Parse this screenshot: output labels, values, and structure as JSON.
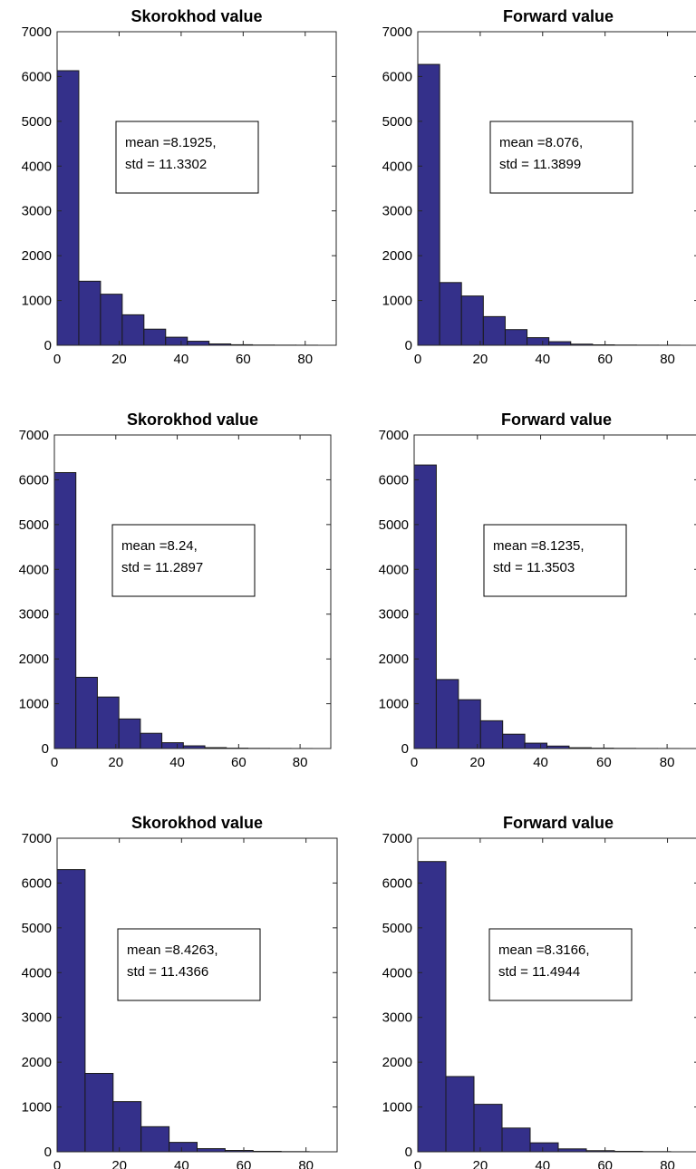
{
  "figure": {
    "bar_color": "#34308a",
    "edge_color": "#1a1a1a"
  },
  "chart_data": [
    {
      "type": "bar",
      "title": "Skorokhod value",
      "bin_width": 7,
      "x": [
        3.5,
        10.5,
        17.5,
        24.5,
        31.5,
        38.5,
        45.5,
        52.5,
        59.5,
        66.5,
        73.5,
        80.5
      ],
      "values": [
        6130,
        1430,
        1140,
        680,
        360,
        180,
        90,
        30,
        12,
        5,
        3,
        2
      ],
      "xlim": [
        0,
        90
      ],
      "ylim": [
        0,
        7000
      ],
      "xticks": [
        "0",
        "20",
        "40",
        "60",
        "80"
      ],
      "yticks": [
        "0",
        "1000",
        "2000",
        "3000",
        "4000",
        "5000",
        "6000",
        "7000"
      ],
      "annotation": [
        "mean =8.1925,",
        "std = 11.3302"
      ]
    },
    {
      "type": "bar",
      "title": "Forward value",
      "bin_width": 7,
      "x": [
        3.5,
        10.5,
        17.5,
        24.5,
        31.5,
        38.5,
        45.5,
        52.5,
        59.5,
        66.5,
        73.5,
        80.5
      ],
      "values": [
        6270,
        1400,
        1100,
        640,
        350,
        170,
        80,
        25,
        10,
        5,
        3,
        2
      ],
      "xlim": [
        0,
        90
      ],
      "ylim": [
        0,
        7000
      ],
      "xticks": [
        "0",
        "20",
        "40",
        "60",
        "80"
      ],
      "yticks": [
        "0",
        "1000",
        "2000",
        "3000",
        "4000",
        "5000",
        "6000",
        "7000"
      ],
      "annotation": [
        "mean =8.076,",
        "std = 11.3899"
      ]
    },
    {
      "type": "bar",
      "title": "Skorokhod value",
      "bin_width": 7,
      "x": [
        3.5,
        10.5,
        17.5,
        24.5,
        31.5,
        38.5,
        45.5,
        52.5,
        59.5,
        66.5,
        73.5,
        80.5
      ],
      "values": [
        6160,
        1590,
        1150,
        660,
        340,
        130,
        60,
        20,
        8,
        4,
        2,
        1
      ],
      "xlim": [
        0,
        90
      ],
      "ylim": [
        0,
        7000
      ],
      "xticks": [
        "0",
        "20",
        "40",
        "60",
        "80"
      ],
      "yticks": [
        "0",
        "1000",
        "2000",
        "3000",
        "4000",
        "5000",
        "6000",
        "7000"
      ],
      "annotation": [
        "mean =8.24,",
        "std = 11.2897"
      ]
    },
    {
      "type": "bar",
      "title": "Forward value",
      "bin_width": 7,
      "x": [
        3.5,
        10.5,
        17.5,
        24.5,
        31.5,
        38.5,
        45.5,
        52.5,
        59.5,
        66.5,
        73.5,
        80.5
      ],
      "values": [
        6330,
        1540,
        1090,
        620,
        320,
        120,
        55,
        18,
        8,
        4,
        2,
        1
      ],
      "xlim": [
        0,
        90
      ],
      "ylim": [
        0,
        7000
      ],
      "xticks": [
        "0",
        "20",
        "40",
        "60",
        "80"
      ],
      "yticks": [
        "0",
        "1000",
        "2000",
        "3000",
        "4000",
        "5000",
        "6000",
        "7000"
      ],
      "annotation": [
        "mean =8.1235,",
        "std = 11.3503"
      ]
    },
    {
      "type": "bar",
      "title": "Skorokhod value",
      "bin_width": 9,
      "x": [
        4.5,
        13.5,
        22.5,
        31.5,
        40.5,
        49.5,
        58.5,
        67.5,
        76.5
      ],
      "values": [
        6300,
        1750,
        1120,
        560,
        210,
        70,
        30,
        10,
        4
      ],
      "xlim": [
        0,
        90
      ],
      "ylim": [
        0,
        7000
      ],
      "xticks": [
        "0",
        "20",
        "40",
        "60",
        "80"
      ],
      "yticks": [
        "0",
        "1000",
        "2000",
        "3000",
        "4000",
        "5000",
        "6000",
        "7000"
      ],
      "annotation": [
        "mean =8.4263,",
        "std = 11.4366"
      ]
    },
    {
      "type": "bar",
      "title": "Forward value",
      "bin_width": 9,
      "x": [
        4.5,
        13.5,
        22.5,
        31.5,
        40.5,
        49.5,
        58.5,
        67.5,
        76.5
      ],
      "values": [
        6480,
        1680,
        1060,
        530,
        200,
        65,
        25,
        10,
        4
      ],
      "xlim": [
        0,
        90
      ],
      "ylim": [
        0,
        7000
      ],
      "xticks": [
        "0",
        "20",
        "40",
        "60",
        "80"
      ],
      "yticks": [
        "0",
        "1000",
        "2000",
        "3000",
        "4000",
        "5000",
        "6000",
        "7000"
      ],
      "annotation": [
        "mean =8.3166,",
        "std = 11.4944"
      ]
    }
  ]
}
